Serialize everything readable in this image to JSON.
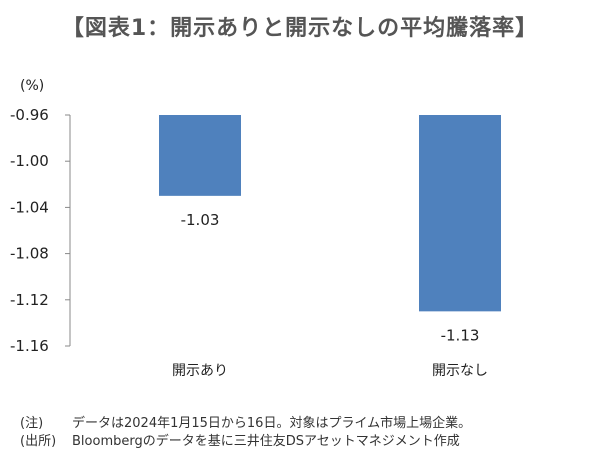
{
  "chart_data": {
    "type": "bar",
    "title": "【図表1：開示ありと開示なしの平均騰落率】",
    "ylabel": "(%)",
    "categories": [
      "開示あり",
      "開示なし"
    ],
    "values": [
      -1.03,
      -1.13
    ],
    "data_labels": [
      "-1.03",
      "-1.13"
    ],
    "ylim": [
      -1.16,
      -0.96
    ],
    "yticks": [
      "-0.96",
      "-1.00",
      "-1.04",
      "-1.08",
      "-1.12",
      "-1.16"
    ],
    "bar_color": "#4f81bd",
    "grid": false,
    "legend": "none"
  },
  "notes": [
    {
      "head": "(注)",
      "text": "データは2024年1月15日から16日。対象はプライム市場上場企業。"
    },
    {
      "head": "(出所)",
      "text": "Bloombergのデータを基に三井住友DSアセットマネジメント作成"
    }
  ]
}
